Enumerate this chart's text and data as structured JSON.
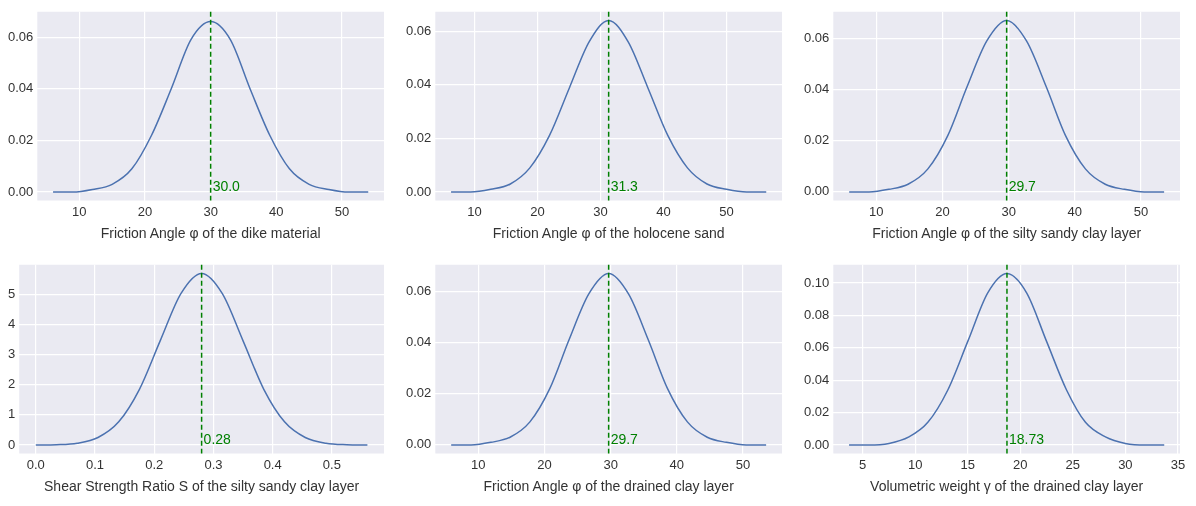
{
  "chart_data": [
    {
      "type": "line",
      "xlabel": "Friction Angle φ of the dike material",
      "grid": true,
      "x": [
        6,
        9,
        12,
        15,
        18,
        21,
        24,
        27,
        30,
        33,
        36,
        39,
        42,
        45,
        48,
        51,
        54
      ],
      "series": [
        {
          "color": "#4c72b0",
          "values": [
            0.0,
            0.0,
            0.001,
            0.003,
            0.009,
            0.022,
            0.04,
            0.059,
            0.066,
            0.059,
            0.04,
            0.022,
            0.009,
            0.003,
            0.001,
            0.0,
            0.0
          ]
        }
      ],
      "xlim": [
        3.6,
        56.4
      ],
      "ylim": [
        -0.0033,
        0.0698
      ],
      "xticks": [
        10,
        20,
        30,
        40,
        50
      ],
      "yticks": [
        {
          "value": 0,
          "label": "0.00"
        },
        {
          "value": 0.02,
          "label": "0.02"
        },
        {
          "value": 0.04,
          "label": "0.04"
        },
        {
          "value": 0.06,
          "label": "0.06"
        }
      ],
      "ref_lines": [
        {
          "axis": "x",
          "value": 30.0,
          "label": "30.0",
          "color": "#008000",
          "line_style": "dashed"
        }
      ]
    },
    {
      "type": "line",
      "xlabel": "Friction Angle φ of the holocene sand",
      "grid": true,
      "x": [
        6.3,
        9.4,
        12.6,
        15.7,
        18.8,
        21.9,
        25.1,
        28.2,
        31.3,
        34.4,
        37.5,
        40.7,
        43.8,
        46.9,
        50.0,
        53.2,
        56.3
      ],
      "series": [
        {
          "color": "#4c72b0",
          "values": [
            0.0,
            0.0,
            0.001,
            0.003,
            0.009,
            0.021,
            0.039,
            0.056,
            0.064,
            0.056,
            0.039,
            0.021,
            0.009,
            0.003,
            0.001,
            0.0,
            0.0
          ]
        }
      ],
      "xlim": [
        3.8,
        58.8
      ],
      "ylim": [
        -0.0032,
        0.0672
      ],
      "xticks": [
        10,
        20,
        30,
        40,
        50
      ],
      "yticks": [
        {
          "value": 0,
          "label": "0.00"
        },
        {
          "value": 0.02,
          "label": "0.02"
        },
        {
          "value": 0.04,
          "label": "0.04"
        },
        {
          "value": 0.06,
          "label": "0.06"
        }
      ],
      "ref_lines": [
        {
          "axis": "x",
          "value": 31.3,
          "label": "31.3",
          "color": "#008000",
          "line_style": "dashed"
        }
      ]
    },
    {
      "type": "line",
      "xlabel": "Friction Angle φ of the silty sandy clay layer",
      "grid": true,
      "x": [
        5.9,
        8.9,
        11.9,
        14.8,
        17.8,
        20.8,
        23.7,
        26.7,
        29.7,
        32.7,
        35.7,
        38.6,
        41.6,
        44.6,
        47.5,
        50.5,
        53.5
      ],
      "series": [
        {
          "color": "#4c72b0",
          "values": [
            0.0,
            0.0,
            0.001,
            0.003,
            0.009,
            0.022,
            0.041,
            0.059,
            0.067,
            0.059,
            0.041,
            0.022,
            0.009,
            0.003,
            0.001,
            0.0,
            0.0
          ]
        }
      ],
      "xlim": [
        3.5,
        55.9
      ],
      "ylim": [
        -0.0034,
        0.0704
      ],
      "xticks": [
        10,
        20,
        30,
        40,
        50
      ],
      "yticks": [
        {
          "value": 0,
          "label": "0.00"
        },
        {
          "value": 0.02,
          "label": "0.02"
        },
        {
          "value": 0.04,
          "label": "0.04"
        },
        {
          "value": 0.06,
          "label": "0.06"
        }
      ],
      "ref_lines": [
        {
          "axis": "x",
          "value": 29.7,
          "label": "29.7",
          "color": "#008000",
          "line_style": "dashed"
        }
      ]
    },
    {
      "type": "line",
      "xlabel": "Shear Strength Ratio S of the silty sandy clay layer",
      "grid": true,
      "x": [
        0,
        0.035,
        0.07,
        0.105,
        0.14,
        0.175,
        0.21,
        0.245,
        0.28,
        0.315,
        0.35,
        0.385,
        0.42,
        0.455,
        0.49,
        0.525,
        0.56
      ],
      "series": [
        {
          "color": "#4c72b0",
          "values": [
            0.0,
            0.01,
            0.06,
            0.25,
            0.77,
            1.85,
            3.46,
            5.03,
            5.7,
            5.03,
            3.46,
            1.85,
            0.77,
            0.25,
            0.06,
            0.01,
            0.0
          ]
        }
      ],
      "xlim": [
        -0.028,
        0.588
      ],
      "ylim": [
        -0.285,
        5.985
      ],
      "xticks": [
        {
          "value": 0,
          "label": "0.0"
        },
        0.1,
        0.2,
        0.3,
        0.4,
        0.5
      ],
      "yticks": [
        0,
        1,
        2,
        3,
        4,
        5
      ],
      "ref_lines": [
        {
          "axis": "x",
          "value": 0.28,
          "label": "0.28",
          "color": "#008000",
          "line_style": "dashed"
        }
      ]
    },
    {
      "type": "line",
      "xlabel": "Friction Angle φ of the drained clay layer",
      "grid": true,
      "x": [
        5.9,
        8.9,
        11.9,
        14.8,
        17.8,
        20.8,
        23.7,
        26.7,
        29.7,
        32.7,
        35.7,
        38.6,
        41.6,
        44.6,
        47.5,
        50.5,
        53.5
      ],
      "series": [
        {
          "color": "#4c72b0",
          "values": [
            0.0,
            0.0,
            0.001,
            0.003,
            0.009,
            0.022,
            0.041,
            0.059,
            0.067,
            0.059,
            0.041,
            0.022,
            0.009,
            0.003,
            0.001,
            0.0,
            0.0
          ]
        }
      ],
      "xlim": [
        3.5,
        55.9
      ],
      "ylim": [
        -0.0034,
        0.0704
      ],
      "xticks": [
        10,
        20,
        30,
        40,
        50
      ],
      "yticks": [
        {
          "value": 0,
          "label": "0.00"
        },
        {
          "value": 0.02,
          "label": "0.02"
        },
        {
          "value": 0.04,
          "label": "0.04"
        },
        {
          "value": 0.06,
          "label": "0.06"
        }
      ],
      "ref_lines": [
        {
          "axis": "x",
          "value": 29.7,
          "label": "29.7",
          "color": "#008000",
          "line_style": "dashed"
        }
      ]
    },
    {
      "type": "line",
      "xlabel": "Volumetric weight γ of the drained clay layer",
      "grid": true,
      "x": [
        3.7,
        5.6,
        7.5,
        9.4,
        11.2,
        13.1,
        15.0,
        16.9,
        18.73,
        20.6,
        22.5,
        24.4,
        26.2,
        28.1,
        30.0,
        31.9,
        33.7
      ],
      "series": [
        {
          "color": "#4c72b0",
          "values": [
            0.0,
            0.0,
            0.001,
            0.005,
            0.014,
            0.034,
            0.064,
            0.094,
            0.106,
            0.094,
            0.064,
            0.034,
            0.014,
            0.005,
            0.001,
            0.0,
            0.0
          ]
        }
      ],
      "xlim": [
        2.2,
        35.2
      ],
      "ylim": [
        -0.0053,
        0.1113
      ],
      "xticks": [
        5,
        10,
        15,
        20,
        25,
        30,
        35
      ],
      "yticks": [
        {
          "value": 0,
          "label": "0.00"
        },
        {
          "value": 0.02,
          "label": "0.02"
        },
        {
          "value": 0.04,
          "label": "0.04"
        },
        {
          "value": 0.06,
          "label": "0.06"
        },
        {
          "value": 0.08,
          "label": "0.08"
        },
        {
          "value": 0.1,
          "label": "0.10"
        }
      ],
      "ref_lines": [
        {
          "axis": "x",
          "value": 18.73,
          "label": "18.73",
          "color": "#008000",
          "line_style": "dashed"
        }
      ]
    }
  ]
}
